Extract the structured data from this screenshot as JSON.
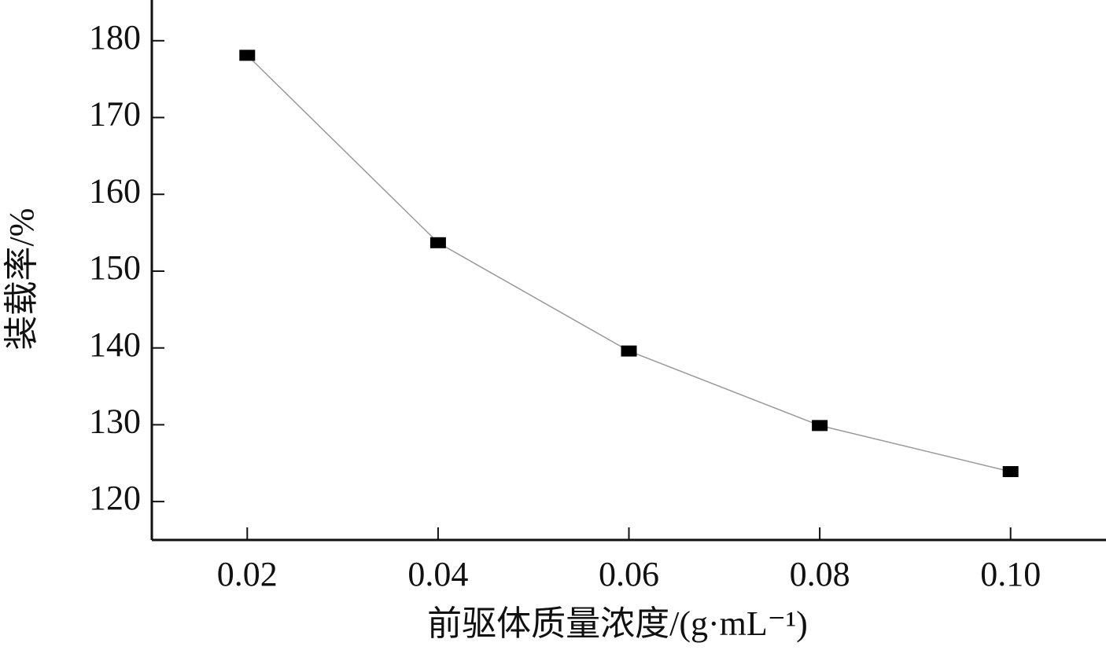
{
  "chart_data": {
    "type": "line",
    "xlabel": "前驱体质量浓度/(g·mL⁻¹)",
    "ylabel": "装载率/%",
    "x": [
      0.02,
      0.04,
      0.06,
      0.08,
      0.1
    ],
    "series": [
      {
        "color": "#000000",
        "line_color": "#999999",
        "values": [
          178.1,
          153.7,
          139.6,
          129.9,
          123.9
        ]
      }
    ],
    "xlim": [
      0.01,
      0.11
    ],
    "ylim": [
      115,
      185.3
    ],
    "xticks": [
      0.02,
      0.04,
      0.06,
      0.08,
      {
        "value": 0.1,
        "label": "0.10"
      }
    ],
    "yticks": [
      120,
      130,
      140,
      150,
      160,
      170,
      180
    ],
    "grid": false
  }
}
